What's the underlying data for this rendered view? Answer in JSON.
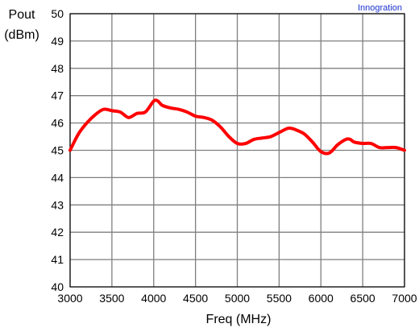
{
  "brand": "Innogration",
  "chart_data": {
    "type": "line",
    "title": "",
    "xlabel": "Freq (MHz)",
    "ylabel_line1": "Pout",
    "ylabel_line2": "(dBm)",
    "xlim": [
      3000,
      7000
    ],
    "ylim": [
      40,
      50
    ],
    "x_ticks": [
      3000,
      3500,
      4000,
      4500,
      5000,
      5500,
      6000,
      6500,
      7000
    ],
    "y_ticks": [
      40,
      41,
      42,
      43,
      44,
      45,
      46,
      47,
      48,
      49,
      50
    ],
    "grid": true,
    "series": [
      {
        "color": "#ff0000",
        "x": [
          3000,
          3100,
          3200,
          3300,
          3400,
          3500,
          3600,
          3700,
          3800,
          3900,
          4000,
          4050,
          4100,
          4200,
          4300,
          4400,
          4500,
          4600,
          4700,
          4800,
          4900,
          5000,
          5100,
          5200,
          5300,
          5400,
          5500,
          5600,
          5650,
          5700,
          5800,
          5900,
          6000,
          6100,
          6200,
          6300,
          6350,
          6400,
          6500,
          6600,
          6700,
          6800,
          6900,
          7000
        ],
        "y": [
          45.0,
          45.6,
          46.0,
          46.3,
          46.5,
          46.45,
          46.4,
          46.2,
          46.35,
          46.4,
          46.8,
          46.8,
          46.65,
          46.55,
          46.5,
          46.4,
          46.25,
          46.2,
          46.1,
          45.85,
          45.5,
          45.25,
          45.25,
          45.4,
          45.45,
          45.5,
          45.65,
          45.8,
          45.8,
          45.75,
          45.6,
          45.3,
          44.95,
          44.9,
          45.2,
          45.4,
          45.4,
          45.3,
          45.25,
          45.25,
          45.1,
          45.1,
          45.1,
          45.0
        ]
      }
    ]
  }
}
